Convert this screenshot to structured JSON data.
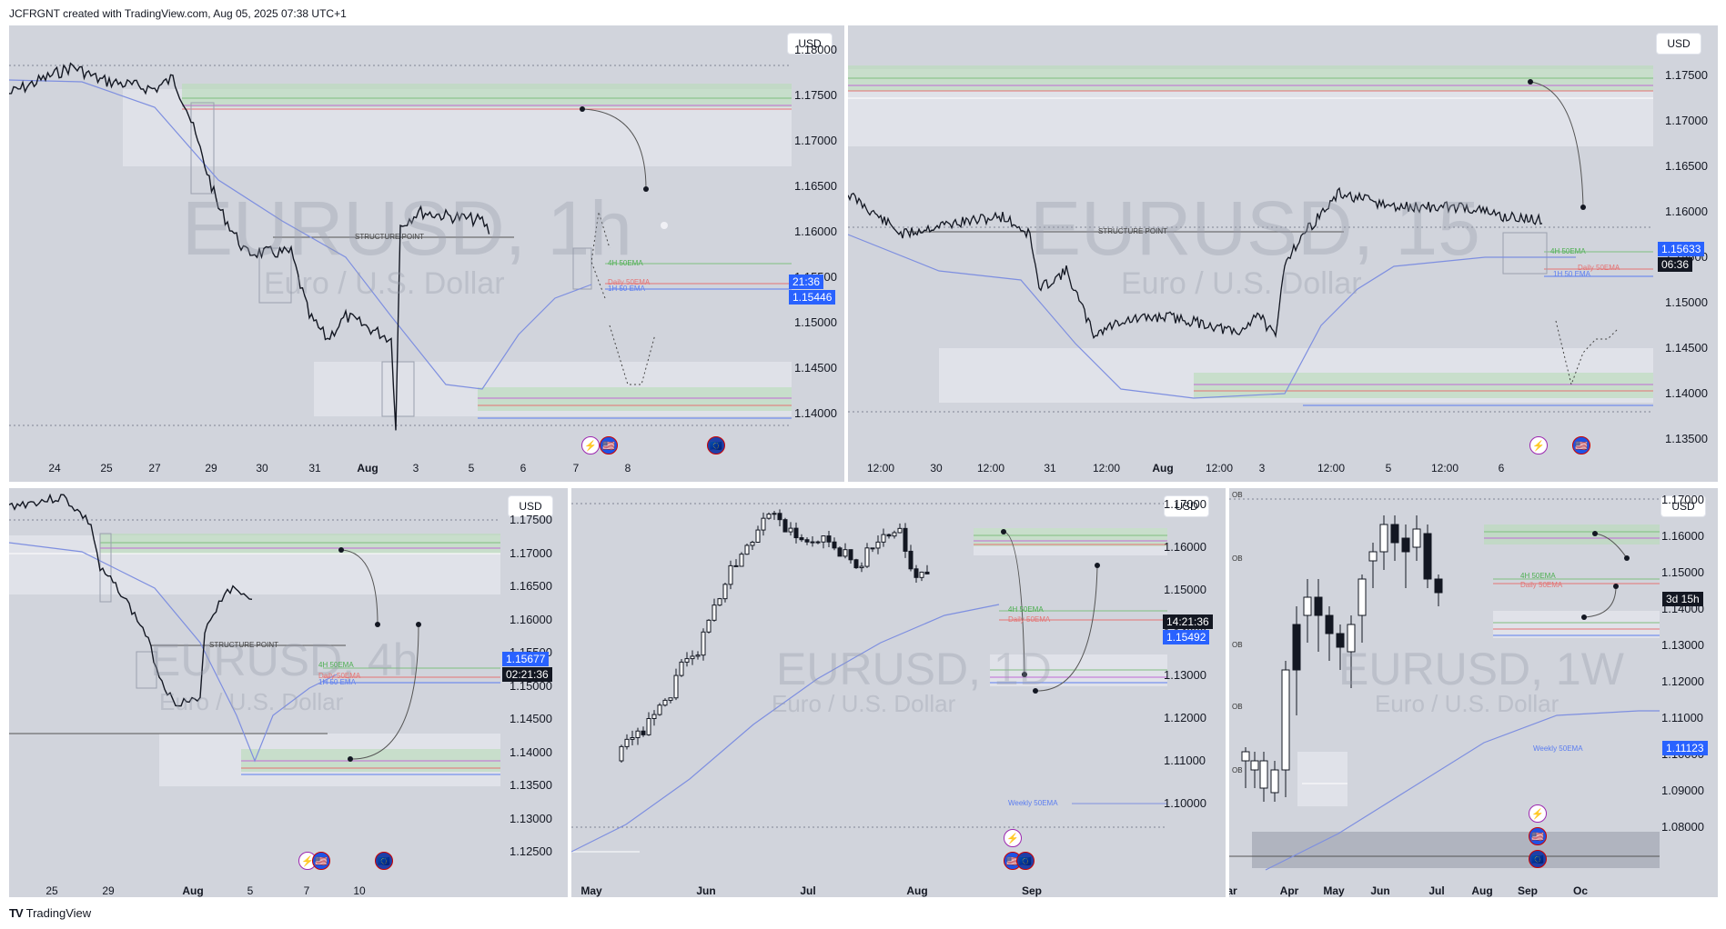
{
  "header": {
    "text": "JCFRGNT created with TradingView.com, Aug 05, 2025 07:38 UTC+1"
  },
  "footer": {
    "brand": "TradingView",
    "logo": "TV"
  },
  "icons": {
    "event_lightning": "⚡",
    "event_us": "🇺🇸",
    "event_eu": "🇪🇺"
  },
  "colors": {
    "bg": "#d1d4dc",
    "candle": "#131722",
    "ema": "#7e8fe0",
    "green_zone": "#b8e0b8",
    "label_blue": "#2962ff",
    "label_black": "#131722"
  },
  "panels": [
    {
      "id": "p1",
      "timeframe": "1h",
      "currency": "USD",
      "watermark": "EURUSD, 1h",
      "subtitle": "Euro / U.S. Dollar",
      "price_ticks": [
        "1.18000",
        "1.17500",
        "1.17000",
        "1.16500",
        "1.16000",
        "1.15500",
        "1.15000",
        "1.14500",
        "1.14000"
      ],
      "time_ticks": [
        "24",
        "25",
        "27",
        "29",
        "30",
        "31",
        "Aug",
        "3",
        "5",
        "6",
        "7",
        "8"
      ],
      "labels": {
        "structure": "STRUCTURE POINT",
        "ema4h": "4H 50EMA",
        "daily": "Daily 50EMA",
        "ema1h": "1H 50 EMA"
      },
      "countdown": "21:36",
      "last_price": "1.15446"
    },
    {
      "id": "p2",
      "timeframe": "15",
      "currency": "USD",
      "watermark": "EURUSD, 15",
      "subtitle": "Euro / U.S. Dollar",
      "price_ticks": [
        "1.17500",
        "1.17000",
        "1.16500",
        "1.16000",
        "1.15500",
        "1.15000",
        "1.14500",
        "1.14000",
        "1.13500"
      ],
      "time_ticks": [
        "12:00",
        "30",
        "12:00",
        "31",
        "12:00",
        "Aug",
        "12:00",
        "3",
        "12:00",
        "5",
        "12:00",
        "6"
      ],
      "labels": {
        "structure": "STRUCTURE POINT",
        "ema4h": "4H 50EMA",
        "daily": "Daily 50EMA",
        "ema1h": "1H 50 EMA"
      },
      "countdown": "06:36",
      "last_price": "1.15633"
    },
    {
      "id": "p3",
      "timeframe": "4h",
      "currency": "USD",
      "watermark": "EURUSD, 4h",
      "subtitle": "Euro / U.S. Dollar",
      "price_ticks": [
        "1.17500",
        "1.17000",
        "1.16500",
        "1.16000",
        "1.15500",
        "1.15000",
        "1.14500",
        "1.14000",
        "1.13500",
        "1.13000",
        "1.12500"
      ],
      "time_ticks": [
        "25",
        "29",
        "Aug",
        "5",
        "7",
        "10"
      ],
      "labels": {
        "structure": "STRUCTURE POINT",
        "ema4h": "4H 50EMA",
        "daily": "Daily 50EMA",
        "ema1h": "1H 50 EMA"
      },
      "countdown": "02:21:36",
      "last_price": "1.15677"
    },
    {
      "id": "p4",
      "timeframe": "1D",
      "currency": "USD",
      "watermark": "EURUSD, 1D",
      "subtitle": "Euro / U.S. Dollar",
      "price_ticks": [
        "1.17000",
        "1.16000",
        "1.15000",
        "1.14000",
        "1.13000",
        "1.12000",
        "1.11000",
        "1.10000"
      ],
      "time_ticks": [
        "May",
        "Jun",
        "Jul",
        "Aug",
        "Sep"
      ],
      "labels": {
        "ema4h": "4H 50EMA",
        "daily": "Daily 50EMA",
        "weekly": "Weekly 50EMA"
      },
      "countdown": "14:21:36",
      "last_price": "1.15492"
    },
    {
      "id": "p5",
      "timeframe": "1W",
      "currency": "USD",
      "watermark": "EURUSD, 1W",
      "subtitle": "Euro / U.S. Dollar",
      "price_ticks": [
        "1.17000",
        "1.16000",
        "1.15000",
        "1.14000",
        "1.13000",
        "1.12000",
        "1.11000",
        "1.10000",
        "1.09000",
        "1.08000"
      ],
      "time_ticks": [
        "ar",
        "Apr",
        "May",
        "Jun",
        "Jul",
        "Aug",
        "Sep",
        "Oc"
      ],
      "ob_labels": [
        "OB",
        "OB",
        "OB",
        "OB",
        "OB"
      ],
      "labels": {
        "ema4h": "4H 50EMA",
        "daily": "Daily 50EMA",
        "weekly": "Weekly 50EMA"
      },
      "countdown": "3d 15h",
      "last_price": "1.11123"
    }
  ]
}
